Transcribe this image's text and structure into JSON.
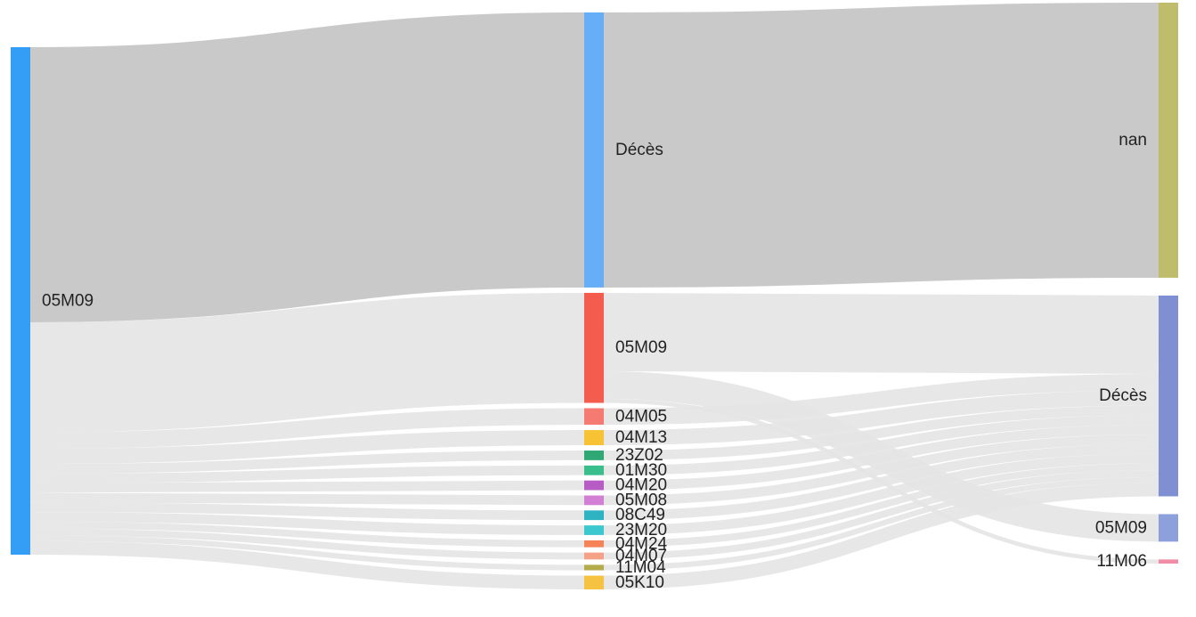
{
  "chart_data": {
    "type": "sankey",
    "columns": [
      [
        {
          "id": "src",
          "label": "05M09",
          "color": "#349ef6"
        }
      ],
      [
        {
          "id": "m_deces",
          "label": "Décès",
          "color": "#66aef8"
        },
        {
          "id": "m_05M09",
          "label": "05M09",
          "color": "#f45c4e"
        },
        {
          "id": "m_04M05",
          "label": "04M05",
          "color": "#f57a72"
        },
        {
          "id": "m_04M13",
          "label": "04M13",
          "color": "#f7c234"
        },
        {
          "id": "m_23Z02",
          "label": "23Z02",
          "color": "#2fa876"
        },
        {
          "id": "m_01M30",
          "label": "01M30",
          "color": "#3bbe8e"
        },
        {
          "id": "m_04M20",
          "label": "04M20",
          "color": "#b65cc4"
        },
        {
          "id": "m_05M08",
          "label": "05M08",
          "color": "#d27fd6"
        },
        {
          "id": "m_08C49",
          "label": "08C49",
          "color": "#2fb3c2"
        },
        {
          "id": "m_23M20",
          "label": "23M20",
          "color": "#3cc8cf"
        },
        {
          "id": "m_04M24",
          "label": "04M24",
          "color": "#f58358"
        },
        {
          "id": "m_04M07",
          "label": "04M07",
          "color": "#f5a187"
        },
        {
          "id": "m_11M04",
          "label": "11M04",
          "color": "#b3ab4c"
        },
        {
          "id": "m_05K10",
          "label": "05K10",
          "color": "#f5c242"
        }
      ],
      [
        {
          "id": "r_nan",
          "label": "nan",
          "color": "#bfbd6c"
        },
        {
          "id": "r_deces",
          "label": "Décès",
          "color": "#7f8fd2"
        },
        {
          "id": "r_05M09",
          "label": "05M09",
          "color": "#8ea0dc"
        },
        {
          "id": "r_11M06",
          "label": "11M06",
          "color": "#f28ba5"
        }
      ]
    ],
    "links": [
      {
        "source": "src",
        "target": "m_deces",
        "value": 200,
        "tone": "dark"
      },
      {
        "source": "src",
        "target": "m_05M09",
        "value": 80
      },
      {
        "source": "src",
        "target": "m_04M05",
        "value": 12
      },
      {
        "source": "src",
        "target": "m_04M13",
        "value": 11
      },
      {
        "source": "src",
        "target": "m_23Z02",
        "value": 7
      },
      {
        "source": "src",
        "target": "m_01M30",
        "value": 7
      },
      {
        "source": "src",
        "target": "m_04M20",
        "value": 7
      },
      {
        "source": "src",
        "target": "m_05M08",
        "value": 7
      },
      {
        "source": "src",
        "target": "m_08C49",
        "value": 7
      },
      {
        "source": "src",
        "target": "m_23M20",
        "value": 7
      },
      {
        "source": "src",
        "target": "m_04M24",
        "value": 5
      },
      {
        "source": "src",
        "target": "m_04M07",
        "value": 5
      },
      {
        "source": "src",
        "target": "m_11M04",
        "value": 4
      },
      {
        "source": "src",
        "target": "m_05K10",
        "value": 10
      },
      {
        "source": "m_deces",
        "target": "r_nan",
        "value": 200,
        "tone": "dark"
      },
      {
        "source": "m_05M09",
        "target": "r_deces",
        "value": 57
      },
      {
        "source": "m_05M09",
        "target": "r_05M09",
        "value": 20
      },
      {
        "source": "m_05M09",
        "target": "r_11M06",
        "value": 3
      },
      {
        "source": "m_04M05",
        "target": "r_deces",
        "value": 12
      },
      {
        "source": "m_04M13",
        "target": "r_deces",
        "value": 11
      },
      {
        "source": "m_23Z02",
        "target": "r_deces",
        "value": 7
      },
      {
        "source": "m_01M30",
        "target": "r_deces",
        "value": 7
      },
      {
        "source": "m_04M20",
        "target": "r_deces",
        "value": 7
      },
      {
        "source": "m_05M08",
        "target": "r_deces",
        "value": 7
      },
      {
        "source": "m_08C49",
        "target": "r_deces",
        "value": 7
      },
      {
        "source": "m_23M20",
        "target": "r_deces",
        "value": 7
      },
      {
        "source": "m_04M24",
        "target": "r_deces",
        "value": 5
      },
      {
        "source": "m_04M07",
        "target": "r_deces",
        "value": 5
      },
      {
        "source": "m_11M04",
        "target": "r_deces",
        "value": 4
      },
      {
        "source": "m_05K10",
        "target": "r_deces",
        "value": 10
      }
    ],
    "link_colors": {
      "dark": "#c9c9c9",
      "light": "#e4e4e4"
    }
  }
}
